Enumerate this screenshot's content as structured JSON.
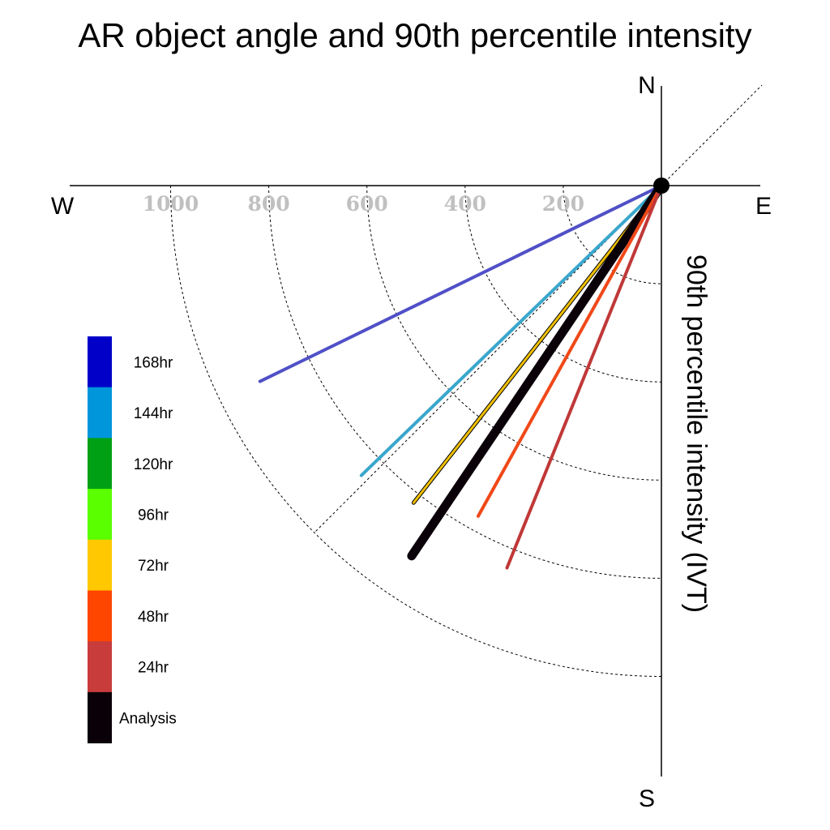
{
  "chart_data": {
    "type": "line",
    "title": "AR object angle and 90th percentile intensity",
    "ylabel": "90th percentile intensity (IVT)",
    "compass": {
      "north": "N",
      "south": "S",
      "east": "E",
      "west": "W"
    },
    "radial_ticks": [
      200,
      400,
      600,
      800,
      1000
    ],
    "tick_labels": [
      "200",
      "400",
      "600",
      "800",
      "1000"
    ],
    "rlim": [
      0,
      1000
    ],
    "series": [
      {
        "name": "168hr",
        "color": "#0000C8",
        "line_color": "#5050C8",
        "angle_deg": 244,
        "intensity": 910
      },
      {
        "name": "144hr",
        "color": "#0096DC",
        "line_color": "#3AA6CC",
        "angle_deg": 226,
        "intensity": 850
      },
      {
        "name": "120hr",
        "color": "#00A014",
        "line_color": "#00A014",
        "angle_deg": null,
        "intensity": null
      },
      {
        "name": "96hr",
        "color": "#5AFF00",
        "line_color": "#5AFF00",
        "angle_deg": null,
        "intensity": null
      },
      {
        "name": "72hr",
        "color": "#FFC800",
        "line_color": "#F0C000",
        "angle_deg": 218,
        "intensity": 820
      },
      {
        "name": "48hr",
        "color": "#FF4600",
        "line_color": "#F04818",
        "angle_deg": 209,
        "intensity": 770
      },
      {
        "name": "24hr",
        "color": "#C83C3C",
        "line_color": "#C03838",
        "angle_deg": 202,
        "intensity": 840
      },
      {
        "name": "Analysis",
        "color": "#0A0008",
        "line_color": "#0A0008",
        "angle_deg": 214,
        "intensity": 910
      }
    ],
    "guides": {
      "reference_diagonal_deg": 45,
      "grid": "dotted quarter circles"
    }
  }
}
